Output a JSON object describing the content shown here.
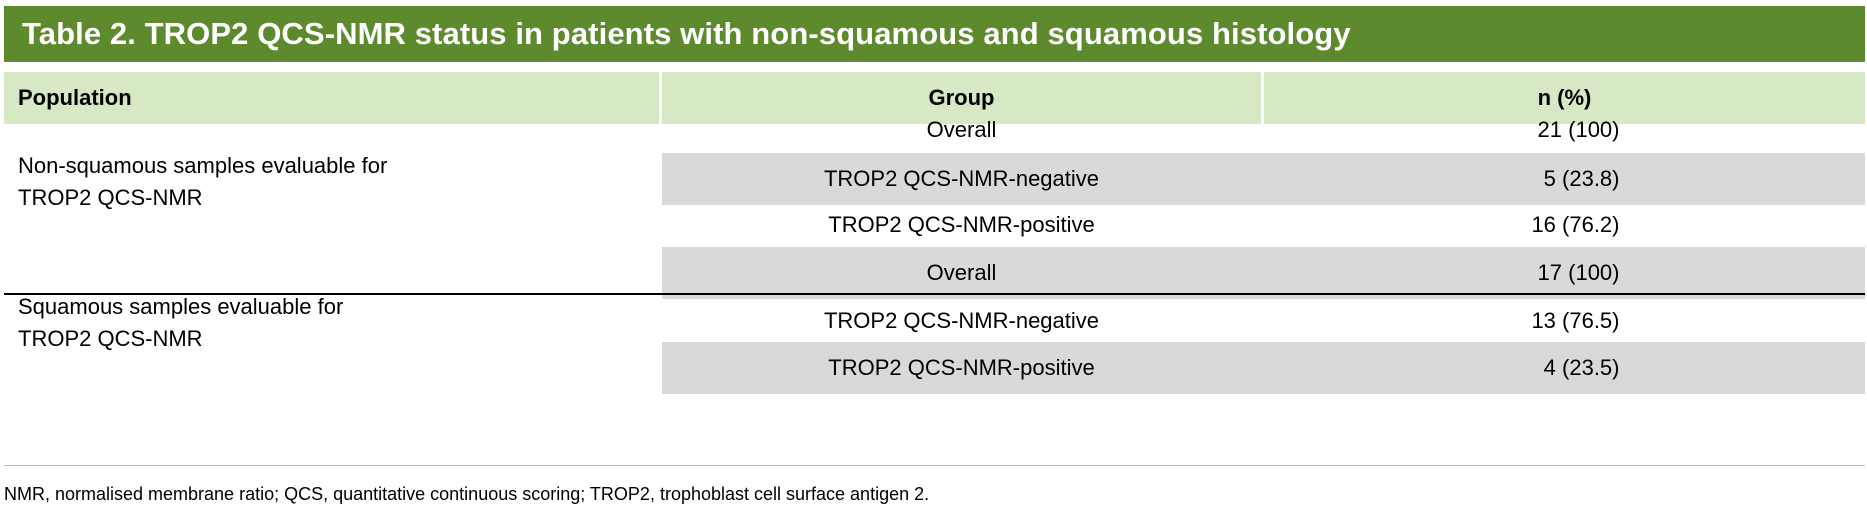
{
  "title": "Table 2. TROP2 QCS-NMR status in patients with non-squamous and squamous histology",
  "columns": {
    "population": "Population",
    "group": "Group",
    "n_pct": "n (%)"
  },
  "sections": [
    {
      "population_line1": "Non-squamous samples evaluable for",
      "population_line2": "TROP2 QCS-NMR",
      "rows": [
        {
          "group": "Overall",
          "n": "21 (100)"
        },
        {
          "group": "TROP2 QCS-NMR-negative",
          "n": "5 (23.8)"
        },
        {
          "group": "TROP2 QCS-NMR-positive",
          "n": "16 (76.2)"
        }
      ]
    },
    {
      "population_line1": "Squamous samples evaluable for",
      "population_line2": "TROP2 QCS-NMR",
      "rows": [
        {
          "group": "Overall",
          "n": "17 (100)"
        },
        {
          "group": "TROP2 QCS-NMR-negative",
          "n": "13 (76.5)"
        },
        {
          "group": "TROP2 QCS-NMR-positive",
          "n": "4 (23.5)"
        }
      ]
    }
  ],
  "footnote": "NMR, normalised membrane ratio; QCS, quantitative continuous scoring; TROP2, trophoblast cell surface antigen 2.",
  "colors": {
    "title_bg": "#5e8a2e",
    "header_bg": "#d6e8c4",
    "band_bg": "#d9d9db"
  }
}
